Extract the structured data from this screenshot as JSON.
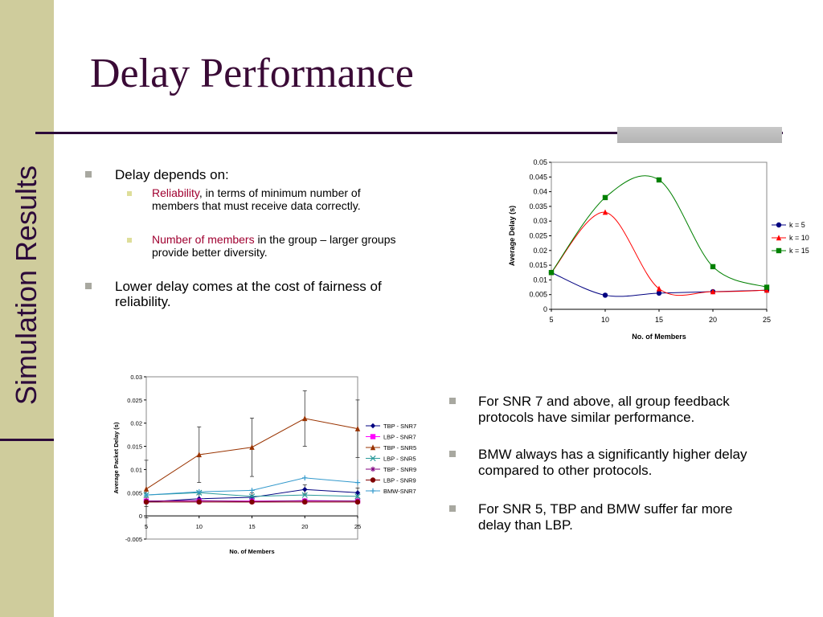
{
  "sidebar": {
    "label": "Simulation Results"
  },
  "title": "Delay Performance",
  "bullets_left": {
    "b1": "Delay depends on:",
    "s1_hl": "Reliability",
    "s1_rest": ", in terms of minimum number of",
    "s1_line2": "members that must receive data correctly.",
    "s2_hl": "Number of members",
    "s2_rest": " in the group – larger groups",
    "s2_line2": "provide better diversity.",
    "b2_line1": "Lower delay comes at the cost of fairness of",
    "b2_line2": "reliability."
  },
  "bullets_right": {
    "r1_line1": "For SNR 7 and above, all  group feedback",
    "r1_line2": "protocols have similar performance.",
    "r2_line1": "BMW always has a significantly higher delay",
    "r2_line2": "compared to other protocols.",
    "r3_line1": "For SNR 5, TBP and BMW suffer far more",
    "r3_line2": "delay than LBP."
  },
  "chart_data": [
    {
      "type": "line",
      "xlabel": "No. of Members",
      "ylabel": "Average Delay (s)",
      "xlim": [
        5,
        25
      ],
      "ylim": [
        0,
        0.05
      ],
      "xticks": [
        "5",
        "10",
        "15",
        "20",
        "25"
      ],
      "yticks": [
        "0",
        "0.005",
        "0.01",
        "0.015",
        "0.02",
        "0.025",
        "0.03",
        "0.035",
        "0.04",
        "0.045",
        "0.05"
      ],
      "legend_position": "right",
      "series": [
        {
          "name": "k = 5",
          "color": "#000080",
          "marker": "circle",
          "x": [
            5,
            10,
            15,
            20,
            25
          ],
          "y": [
            0.0125,
            0.0048,
            0.0055,
            0.006,
            0.0065
          ]
        },
        {
          "name": "k = 10",
          "color": "#ff0000",
          "marker": "triangle",
          "x": [
            5,
            10,
            15,
            20,
            25
          ],
          "y": [
            0.0125,
            0.033,
            0.007,
            0.006,
            0.0065
          ]
        },
        {
          "name": "k = 15",
          "color": "#008000",
          "marker": "square",
          "x": [
            5,
            10,
            15,
            20,
            25
          ],
          "y": [
            0.0125,
            0.038,
            0.044,
            0.0145,
            0.0075
          ]
        }
      ]
    },
    {
      "type": "line",
      "xlabel": "No. of Members",
      "ylabel": "Average Packet Delay (s)",
      "xlim": [
        5,
        25
      ],
      "ylim": [
        -0.005,
        0.03
      ],
      "xticks": [
        "5",
        "10",
        "15",
        "20",
        "25"
      ],
      "yticks": [
        "-0.005",
        "0",
        "0.005",
        "0.01",
        "0.015",
        "0.02",
        "0.025",
        "0.03"
      ],
      "legend_position": "right",
      "series": [
        {
          "name": "TBP - SNR7",
          "color": "#000080",
          "marker": "diamond",
          "x": [
            5,
            10,
            15,
            20,
            25
          ],
          "y": [
            0.003,
            0.0037,
            0.004,
            0.0057,
            0.005
          ],
          "err": [
            0.001,
            0.001,
            0.001,
            0.001,
            0.001
          ]
        },
        {
          "name": "LBP - SNR7",
          "color": "#ff00ff",
          "marker": "square",
          "x": [
            5,
            10,
            15,
            20,
            25
          ],
          "y": [
            0.0032,
            0.0032,
            0.0032,
            0.0032,
            0.0032
          ]
        },
        {
          "name": "TBP - SNR5",
          "color": "#993300",
          "marker": "triangle",
          "x": [
            5,
            10,
            15,
            20,
            25
          ],
          "y": [
            0.0058,
            0.0132,
            0.0148,
            0.021,
            0.0188
          ],
          "err": [
            0.0062,
            0.006,
            0.0063,
            0.006,
            0.0062
          ]
        },
        {
          "name": "LBP - SNR5",
          "color": "#2a9a9a",
          "marker": "x",
          "x": [
            5,
            10,
            15,
            20,
            25
          ],
          "y": [
            0.0045,
            0.005,
            0.0042,
            0.0045,
            0.0042
          ]
        },
        {
          "name": "TBP - SNR9",
          "color": "#800080",
          "marker": "star",
          "x": [
            5,
            10,
            15,
            20,
            25
          ],
          "y": [
            0.0032,
            0.0033,
            0.0031,
            0.0033,
            0.0032
          ]
        },
        {
          "name": "LBP - SNR9",
          "color": "#800000",
          "marker": "circle",
          "x": [
            5,
            10,
            15,
            20,
            25
          ],
          "y": [
            0.003,
            0.003,
            0.003,
            0.003,
            0.003
          ]
        },
        {
          "name": "BMW-SNR7",
          "color": "#3399cc",
          "marker": "plus",
          "x": [
            5,
            10,
            15,
            20,
            25
          ],
          "y": [
            0.0045,
            0.0052,
            0.0055,
            0.0082,
            0.0072
          ]
        }
      ]
    }
  ]
}
